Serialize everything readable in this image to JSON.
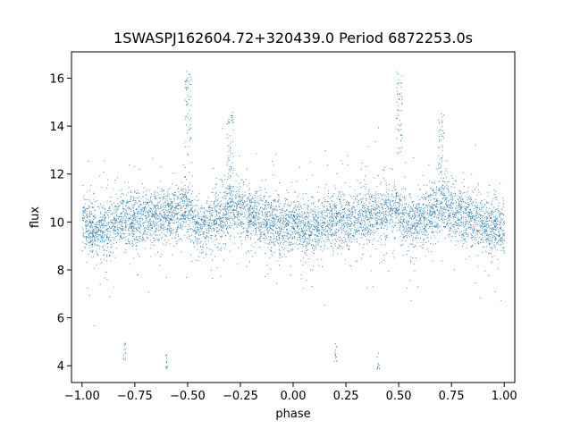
{
  "chart_data": {
    "type": "scatter",
    "title": "1SWASPJ162604.72+320439.0 Period 6872253.0s",
    "xlabel": "phase",
    "ylabel": "flux",
    "xlim": [
      -1.05,
      1.05
    ],
    "ylim": [
      3.3,
      17.1
    ],
    "xticks": [
      -1.0,
      -0.75,
      -0.5,
      -0.25,
      0.0,
      0.25,
      0.5,
      0.75,
      1.0
    ],
    "xtick_labels": [
      "−1.00",
      "−0.75",
      "−0.50",
      "−0.25",
      "0.00",
      "0.25",
      "0.50",
      "0.75",
      "1.00"
    ],
    "yticks": [
      4,
      6,
      8,
      10,
      12,
      14,
      16
    ],
    "ytick_labels": [
      "4",
      "6",
      "8",
      "10",
      "12",
      "14",
      "16"
    ],
    "grid": false,
    "color": "#1f77b4",
    "series": [
      {
        "x_range": [
          -1.0,
          1.0
        ],
        "baseline_flux": 10.0,
        "profile": [
          {
            "x": 0.0,
            "y": 10.0
          },
          {
            "x": 0.06,
            "y": 9.6
          },
          {
            "x": 0.2,
            "y": 10.1
          },
          {
            "x": 0.45,
            "y": 10.4
          },
          {
            "x": 0.5,
            "y": 10.5
          },
          {
            "x": 0.55,
            "y": 9.7
          },
          {
            "x": 0.7,
            "y": 10.6
          },
          {
            "x": 0.8,
            "y": 10.3
          },
          {
            "x": 1.0,
            "y": 9.7
          }
        ],
        "high_outlier_clusters": [
          {
            "x": 0.5,
            "y": 16.3
          },
          {
            "x": -0.5,
            "y": 16.3
          },
          {
            "x": 0.7,
            "y": 14.6
          },
          {
            "x": -0.3,
            "y": 14.6
          }
        ],
        "low_outlier_clusters": [
          {
            "x": -0.8,
            "y": 4.6
          },
          {
            "x": 0.2,
            "y": 4.6
          },
          {
            "x": -0.6,
            "y": 4.2
          },
          {
            "x": 0.4,
            "y": 4.2
          }
        ]
      }
    ]
  }
}
